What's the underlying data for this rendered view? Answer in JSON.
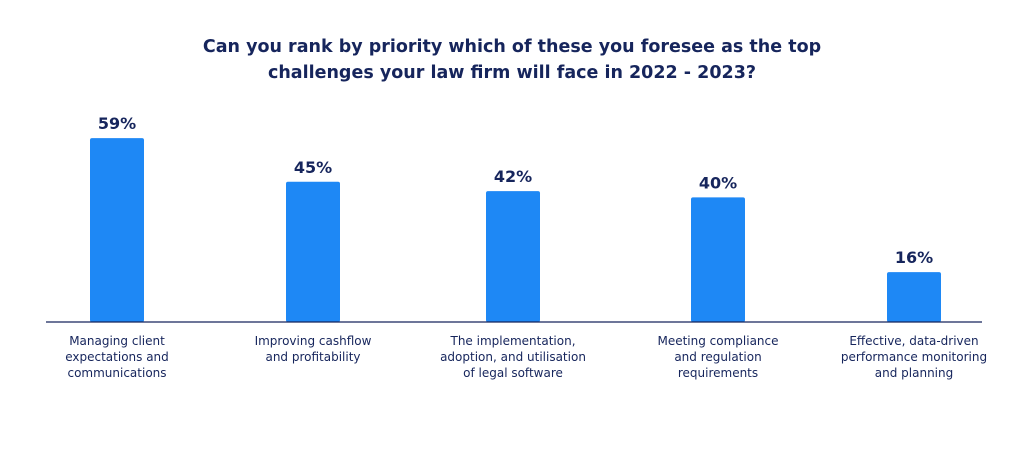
{
  "chart_data": {
    "type": "bar",
    "title": "Can you rank by priority which of these you foresee as the top\nchallenges your law firm will face  in 2022 - 2023?",
    "categories": [
      "Managing client\nexpectations and\ncommunications",
      "Improving cashflow\nand profitability",
      "The implementation,\nadoption, and utilisation\nof legal software",
      "Meeting compliance\nand regulation\nrequirements",
      "Effective, data-driven\nperformance monitoring\nand planning"
    ],
    "values": [
      59,
      45,
      42,
      40,
      16
    ],
    "value_labels": [
      "59%",
      "45%",
      "42%",
      "40%",
      "16%"
    ],
    "ylim": [
      0,
      60
    ],
    "xlabel": "",
    "ylabel": "",
    "grid": false,
    "legend": "none",
    "bar_color": "#1e88f5",
    "text_color": "#16255c",
    "axis_color": "#16255c"
  }
}
